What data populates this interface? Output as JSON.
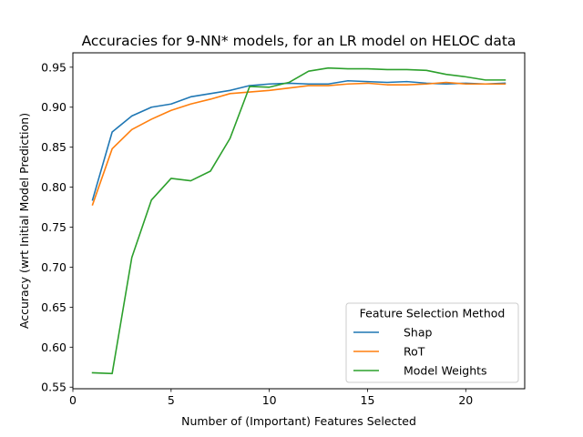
{
  "chart_data": {
    "type": "line",
    "title": "Accuracies for 9-NN* models, for an LR model on HELOC data",
    "xlabel": "Number of (Important) Features Selected",
    "ylabel": "Accuracy (wrt Initial Model Prediction)",
    "xlim": [
      0,
      23
    ],
    "ylim": [
      0.548,
      0.968
    ],
    "xticks": [
      0,
      5,
      10,
      15,
      20
    ],
    "yticks": [
      0.55,
      0.6,
      0.65,
      0.7,
      0.75,
      0.8,
      0.85,
      0.9,
      0.95
    ],
    "x": [
      1,
      2,
      3,
      4,
      5,
      6,
      7,
      8,
      9,
      10,
      11,
      12,
      13,
      14,
      15,
      16,
      17,
      18,
      19,
      20,
      21,
      22
    ],
    "series": [
      {
        "name": "Shap",
        "color": "#1f77b4",
        "values": [
          0.784,
          0.869,
          0.889,
          0.9,
          0.904,
          0.913,
          0.917,
          0.921,
          0.927,
          0.929,
          0.93,
          0.929,
          0.929,
          0.933,
          0.932,
          0.931,
          0.932,
          0.93,
          0.929,
          0.93,
          0.929,
          0.93
        ]
      },
      {
        "name": "RoT",
        "color": "#ff7f0e",
        "values": [
          0.778,
          0.848,
          0.872,
          0.885,
          0.896,
          0.904,
          0.91,
          0.917,
          0.919,
          0.921,
          0.924,
          0.927,
          0.927,
          0.929,
          0.93,
          0.928,
          0.928,
          0.929,
          0.931,
          0.929,
          0.929,
          0.929
        ]
      },
      {
        "name": "Model Weights",
        "color": "#2ca02c",
        "values": [
          0.568,
          0.567,
          0.712,
          0.784,
          0.811,
          0.808,
          0.82,
          0.861,
          0.926,
          0.925,
          0.931,
          0.945,
          0.949,
          0.948,
          0.948,
          0.947,
          0.947,
          0.946,
          0.941,
          0.938,
          0.934,
          0.934
        ]
      }
    ],
    "legend": {
      "title": "Feature Selection Method",
      "placement": "lower-right"
    },
    "grid": false
  }
}
